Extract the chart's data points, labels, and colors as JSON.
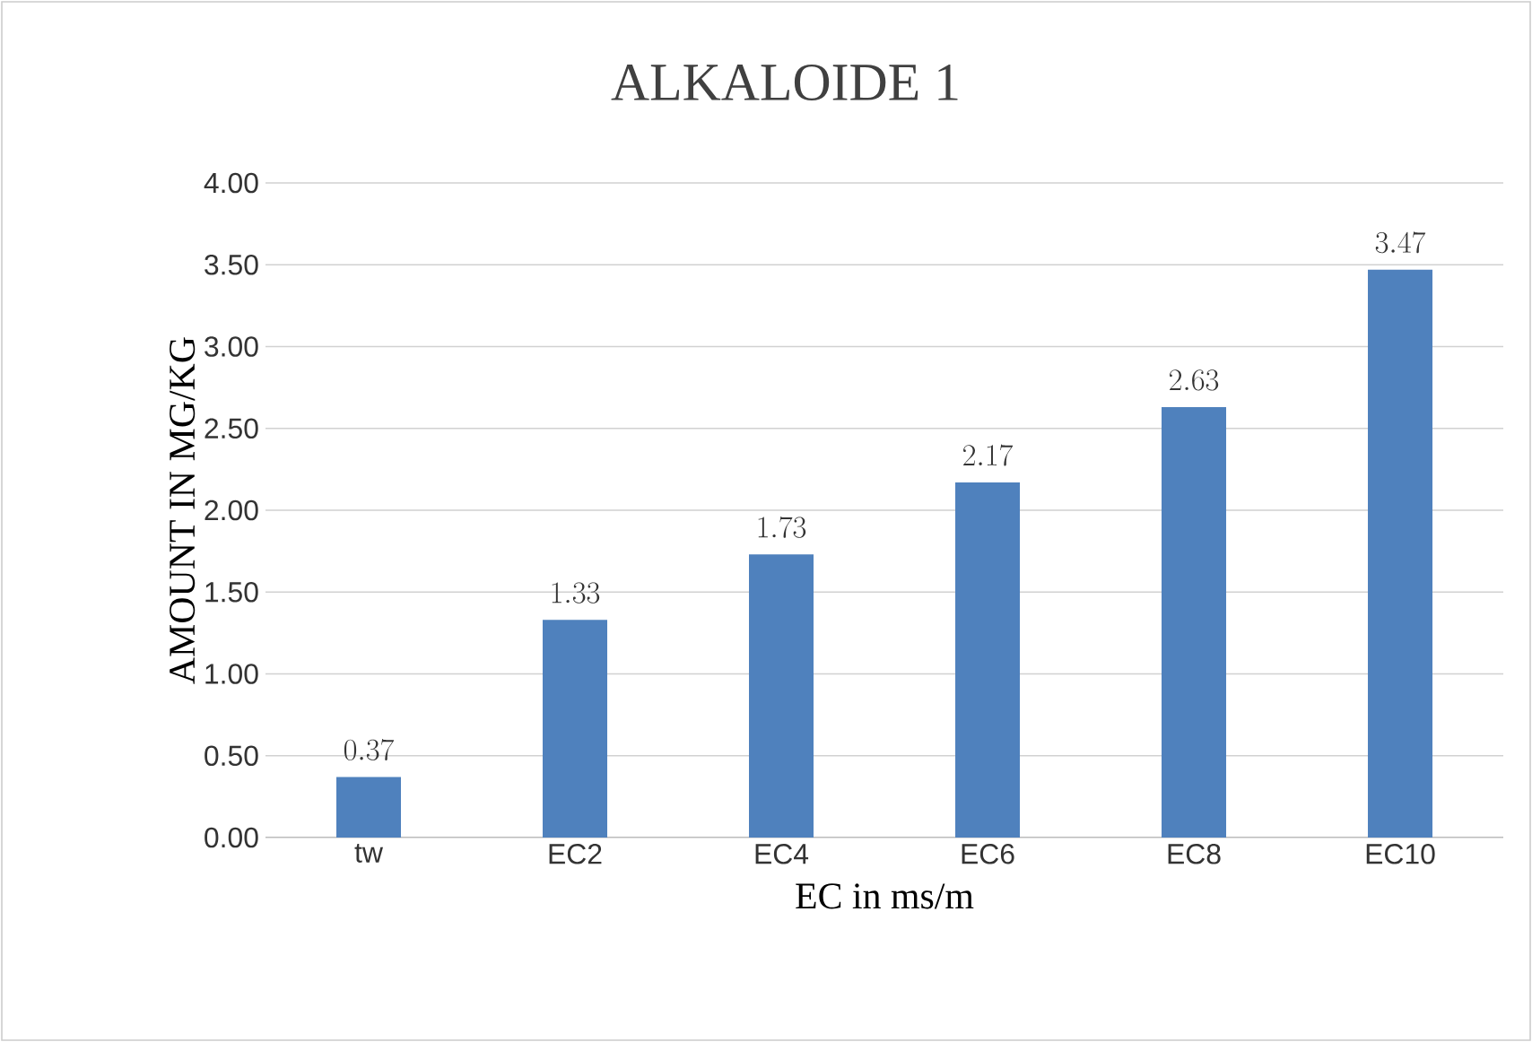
{
  "chart_data": {
    "type": "bar",
    "title": "ALKALOIDE  1",
    "xlabel": "EC in ms/m",
    "ylabel": "AMOUNT  IN MG/KG",
    "categories": [
      "tw",
      "EC2",
      "EC4",
      "EC6",
      "EC8",
      "EC10"
    ],
    "values": [
      0.37,
      1.33,
      1.73,
      2.17,
      2.63,
      3.47
    ],
    "color": "#4f81bd",
    "ylim": [
      0,
      4
    ],
    "yticks": [
      {
        "value": 0,
        "label": "0.00"
      },
      {
        "value": 0.5,
        "label": "0.50"
      },
      {
        "value": 1,
        "label": "1.00"
      },
      {
        "value": 1.5,
        "label": "1.50"
      },
      {
        "value": 2,
        "label": "2.00"
      },
      {
        "value": 2.5,
        "label": "2.50"
      },
      {
        "value": 3,
        "label": "3.00"
      },
      {
        "value": 3.5,
        "label": "3.50"
      },
      {
        "value": 4,
        "label": "4.00"
      }
    ],
    "grid": "y",
    "data_labels": true
  }
}
